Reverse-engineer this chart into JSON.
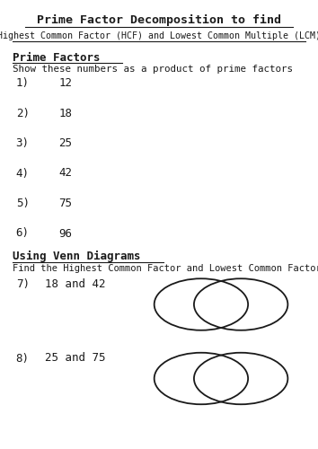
{
  "title": "Prime Factor Decomposition to find",
  "subtitle": "Highest Common Factor (HCF) and Lowest Common Multiple (LCM)",
  "section1_header": "Prime Factors",
  "section1_sub": "Show these numbers as a product of prime factors",
  "prime_items": [
    {
      "num": "1)",
      "val": "12"
    },
    {
      "num": "2)",
      "val": "18"
    },
    {
      "num": "3)",
      "val": "25"
    },
    {
      "num": "4)",
      "val": "42"
    },
    {
      "num": "5)",
      "val": "75"
    },
    {
      "num": "6)",
      "val": "96"
    }
  ],
  "section2_header": "Using Venn Diagrams",
  "section2_sub": "Find the Highest Common Factor and Lowest Common Factor of",
  "venn_items": [
    {
      "num": "7)",
      "val": "18 and 42"
    },
    {
      "num": "8)",
      "val": "25 and 75"
    }
  ],
  "bg_color": "#ffffff",
  "text_color": "#1a1a1a"
}
